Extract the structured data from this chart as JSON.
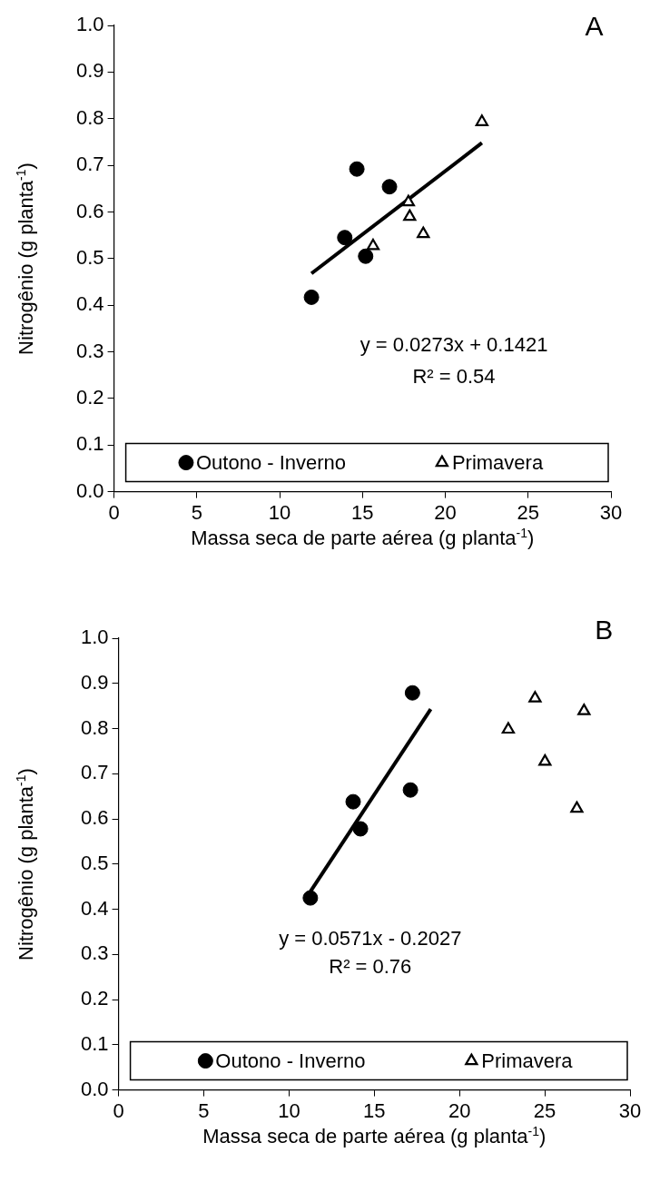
{
  "chart_data": [
    {
      "type": "scatter",
      "xlabel": "Massa seca de parte aérea (g planta$^{-1}$)",
      "ylabel": "Nitrogênio (g planta$^{-1}$)",
      "annotations": [
        "A",
        "y = 0.0273x + 0.1421",
        "R² = 0.54"
      ],
      "xlim": [
        0,
        30
      ],
      "xticks": [
        0,
        5,
        10,
        15,
        20,
        25,
        30
      ],
      "ylim": [
        0,
        1
      ],
      "yticks": [
        {
          "value": 0,
          "label": "0.0"
        },
        {
          "value": 0.1,
          "label": "0.1"
        },
        {
          "value": 0.2,
          "label": "0.2"
        },
        {
          "value": 0.3,
          "label": "0.3"
        },
        {
          "value": 0.4,
          "label": "0.4"
        },
        {
          "value": 0.5,
          "label": "0.5"
        },
        {
          "value": 0.6,
          "label": "0.6"
        },
        {
          "value": 0.7,
          "label": "0.7"
        },
        {
          "value": 0.8,
          "label": "0.8"
        },
        {
          "value": 0.9,
          "label": "0.9"
        },
        {
          "value": 1,
          "label": "1.0"
        }
      ],
      "grid": false,
      "legend": "bottom",
      "series": [
        {
          "name": "Outono - Inverno",
          "color": "#000000",
          "marker": "circle",
          "x": [
            11.92,
            13.93,
            15.19,
            14.66,
            16.63
          ],
          "values": [
            0.417,
            0.545,
            0.505,
            0.692,
            0.654
          ]
        },
        {
          "name": "Primavera",
          "color": "#000000",
          "marker": "triangle",
          "x": [
            22.21,
            17.77,
            17.85,
            18.67,
            15.64
          ],
          "values": [
            0.793,
            0.621,
            0.59,
            0.553,
            0.527
          ]
        },
        {
          "type": "line",
          "color": "#000000",
          "marker": "none",
          "x": [
            11.92,
            22.21
          ],
          "values": [
            0.468,
            0.748
          ]
        }
      ]
    },
    {
      "type": "scatter",
      "xlabel": "Massa seca de parte aérea (g planta$^{-1}$)",
      "ylabel": "Nitrogênio  (g planta$^{-1}$)",
      "annotations": [
        "B",
        "y = 0.0571x - 0.2027",
        "R² = 0.76"
      ],
      "xlim": [
        0,
        30
      ],
      "xticks": [
        0,
        5,
        10,
        15,
        20,
        25,
        30
      ],
      "ylim": [
        0,
        1
      ],
      "yticks": [
        {
          "value": 0,
          "label": "0.0"
        },
        {
          "value": 0.1,
          "label": "0.1"
        },
        {
          "value": 0.2,
          "label": "0.2"
        },
        {
          "value": 0.3,
          "label": "0.3"
        },
        {
          "value": 0.4,
          "label": "0.4"
        },
        {
          "value": 0.5,
          "label": "0.5"
        },
        {
          "value": 0.6,
          "label": "0.6"
        },
        {
          "value": 0.7,
          "label": "0.7"
        },
        {
          "value": 0.8,
          "label": "0.8"
        },
        {
          "value": 0.9,
          "label": "0.9"
        },
        {
          "value": 1,
          "label": "1.0"
        }
      ],
      "grid": false,
      "legend": "bottom",
      "series": [
        {
          "name": "Outono - Inverno",
          "color": "#000000",
          "marker": "circle",
          "x": [
            11.25,
            13.76,
            14.19,
            17.12,
            17.24
          ],
          "values": [
            0.425,
            0.638,
            0.578,
            0.664,
            0.879
          ]
        },
        {
          "name": "Primavera",
          "color": "#000000",
          "marker": "triangle",
          "x": [
            22.86,
            24.43,
            27.3,
            25.01,
            26.88
          ],
          "values": [
            0.798,
            0.867,
            0.839,
            0.727,
            0.623
          ]
        },
        {
          "type": "line",
          "color": "#000000",
          "marker": "none",
          "x": [
            11.25,
            18.31
          ],
          "values": [
            0.439,
            0.843
          ]
        }
      ]
    }
  ]
}
